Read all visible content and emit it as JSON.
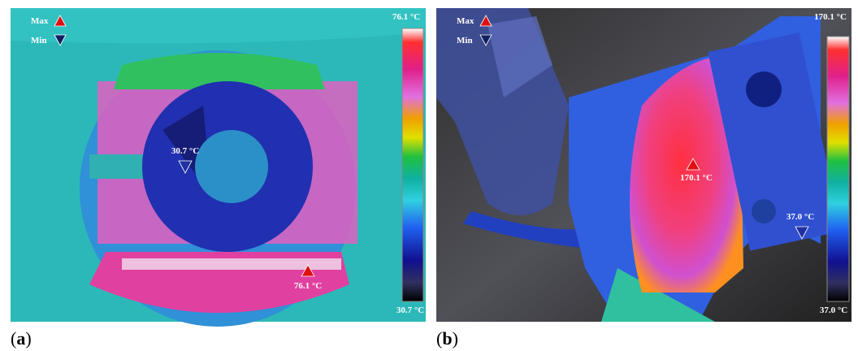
{
  "panels": [
    {
      "label_open": "(",
      "label": "a",
      "label_close": ")",
      "legend_max": "Max",
      "legend_min": "Min",
      "scale_top": "76.1 °C",
      "scale_bottom": "30.7 °C",
      "max_point": "76.1 °C",
      "min_point": "30.7 °C"
    },
    {
      "label_open": "(",
      "label": "b",
      "label_close": ")",
      "legend_max": "Max",
      "legend_min": "Min",
      "scale_top": "170.1 °C",
      "scale_bottom": "37.0 °C",
      "max_point": "170.1 °C",
      "min_point": "37.0 °C"
    }
  ]
}
